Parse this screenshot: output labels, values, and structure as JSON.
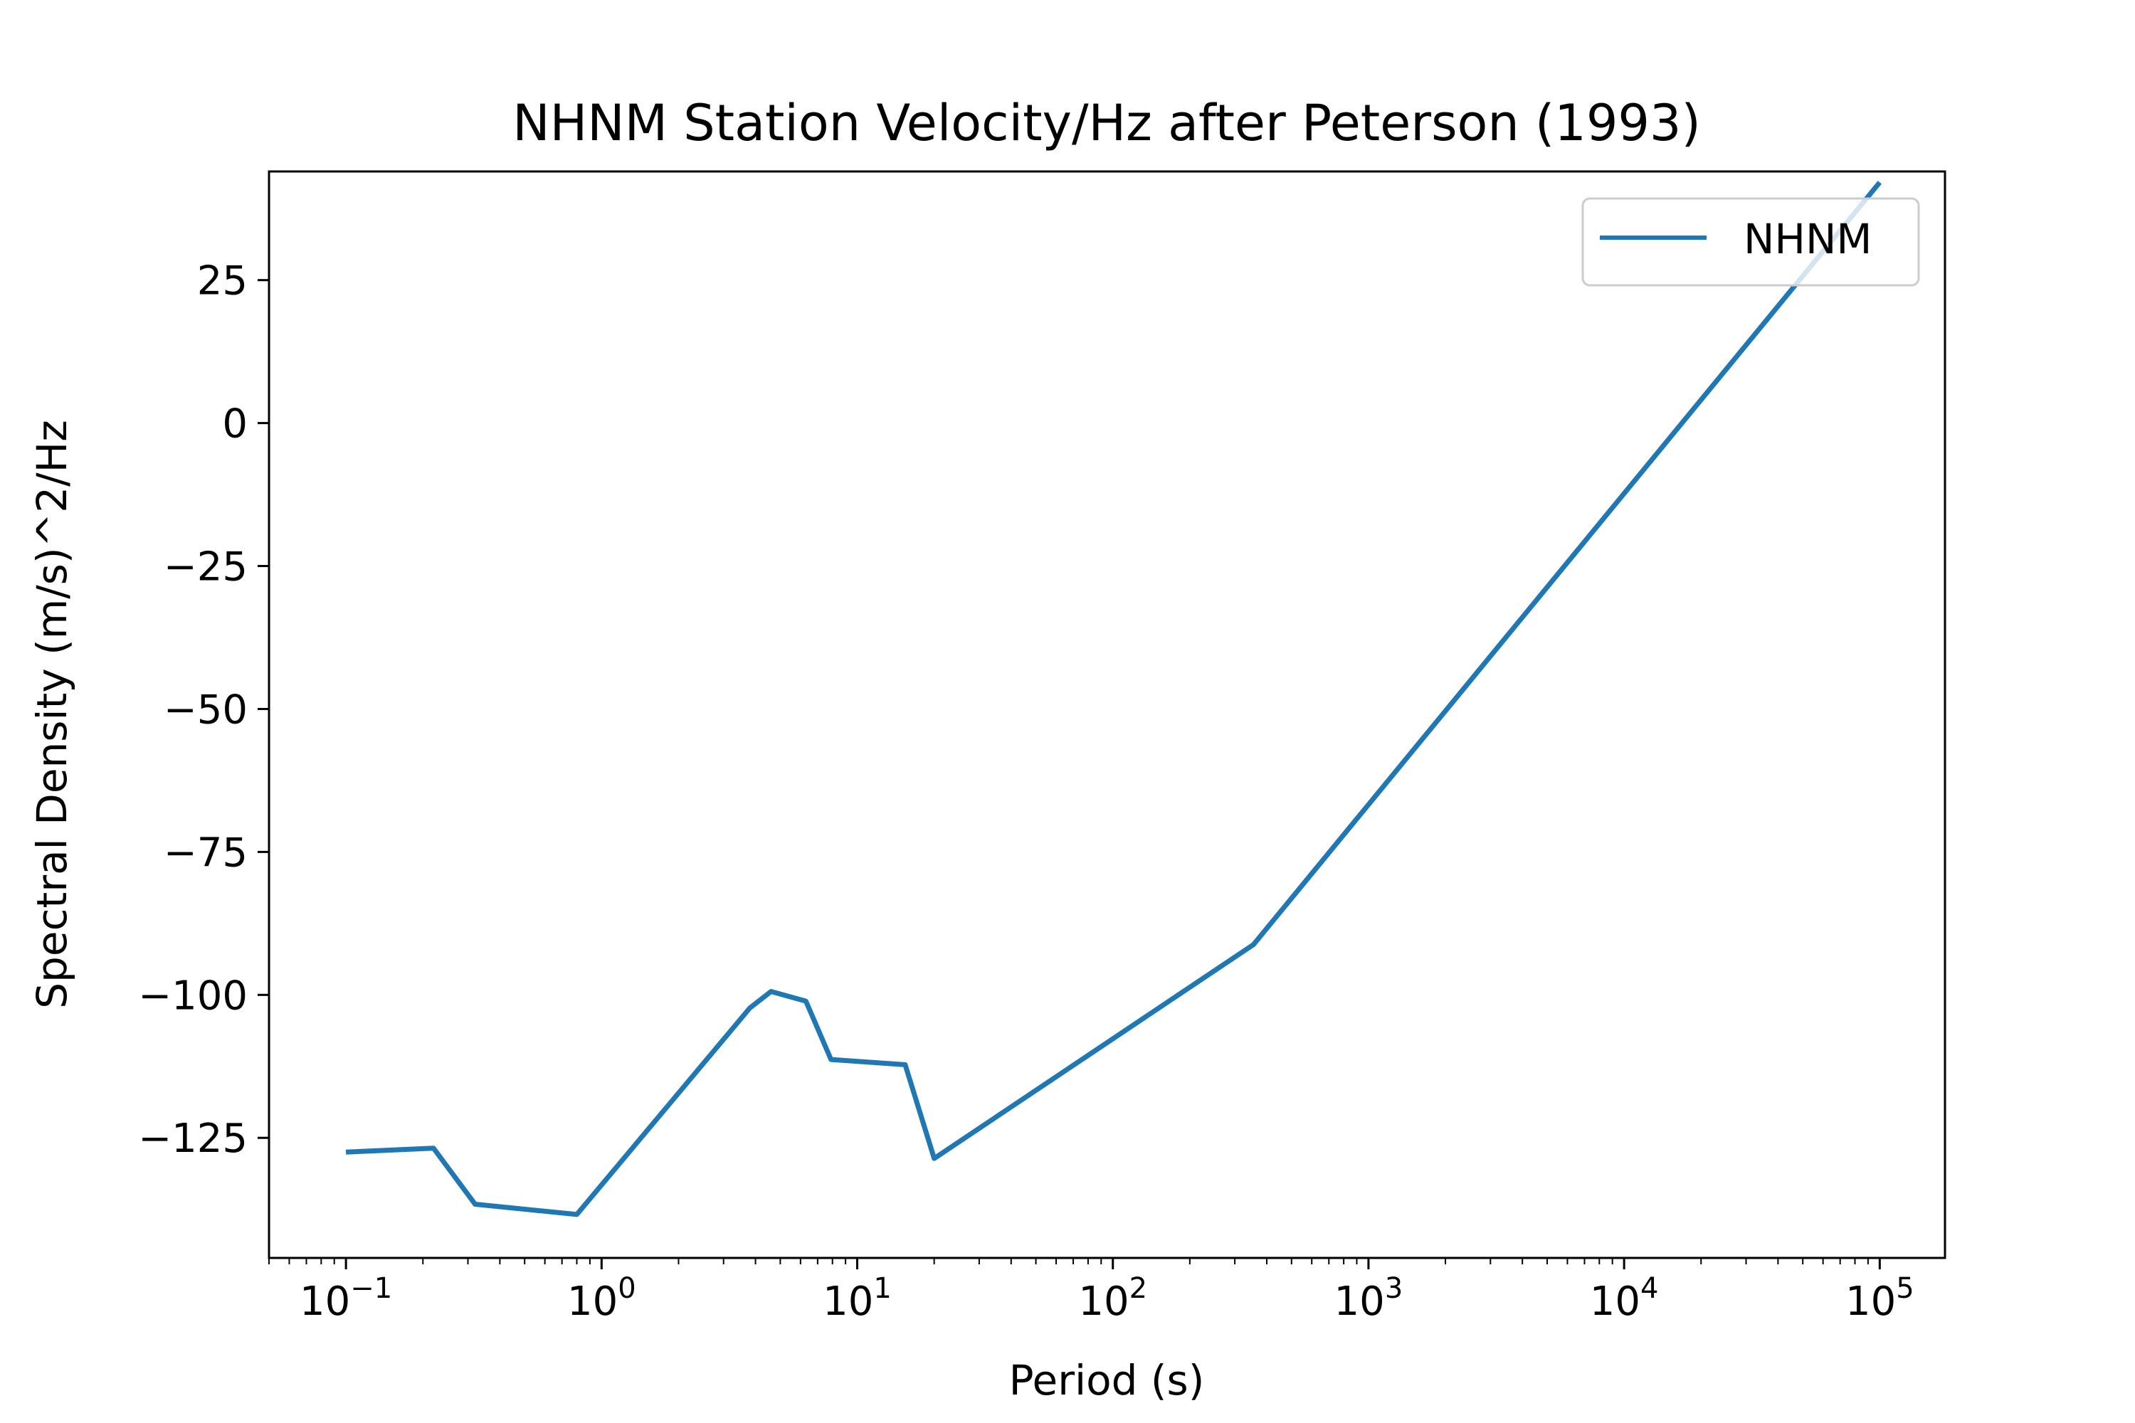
{
  "chart_data": {
    "type": "line",
    "title": "NHNM Station Velocity/Hz after Peterson (1993)",
    "xlabel": "Period (s)",
    "ylabel": "Spectral Density (m/s)^2/Hz",
    "x_scale": "log",
    "xlim": [
      0.05,
      180000
    ],
    "ylim": [
      -146,
      44
    ],
    "x_ticks": [
      {
        "value": 0.1,
        "base": "10",
        "exp": "−1"
      },
      {
        "value": 1,
        "base": "10",
        "exp": "0"
      },
      {
        "value": 10,
        "base": "10",
        "exp": "1"
      },
      {
        "value": 100,
        "base": "10",
        "exp": "2"
      },
      {
        "value": 1000,
        "base": "10",
        "exp": "3"
      },
      {
        "value": 10000,
        "base": "10",
        "exp": "4"
      },
      {
        "value": 100000,
        "base": "10",
        "exp": "5"
      }
    ],
    "y_ticks": [
      {
        "value": 25,
        "label": "25"
      },
      {
        "value": 0,
        "label": "0"
      },
      {
        "value": -25,
        "label": "−25"
      },
      {
        "value": -50,
        "label": "−50"
      },
      {
        "value": -75,
        "label": "−75"
      },
      {
        "value": -100,
        "label": "−100"
      },
      {
        "value": -125,
        "label": "−125"
      }
    ],
    "grid": false,
    "legend": {
      "position": "top-right"
    },
    "series": [
      {
        "name": "NHNM",
        "color": "#1f77b4",
        "x": [
          0.1,
          0.22,
          0.32,
          0.8,
          3.8,
          4.6,
          6.3,
          7.9,
          15.4,
          20,
          354.8,
          100000
        ],
        "y": [
          -127.5,
          -126.8,
          -136.6,
          -138.4,
          -102.3,
          -99.4,
          -101.1,
          -111.3,
          -112.2,
          -128.6,
          -91.2,
          42.1
        ]
      }
    ]
  }
}
